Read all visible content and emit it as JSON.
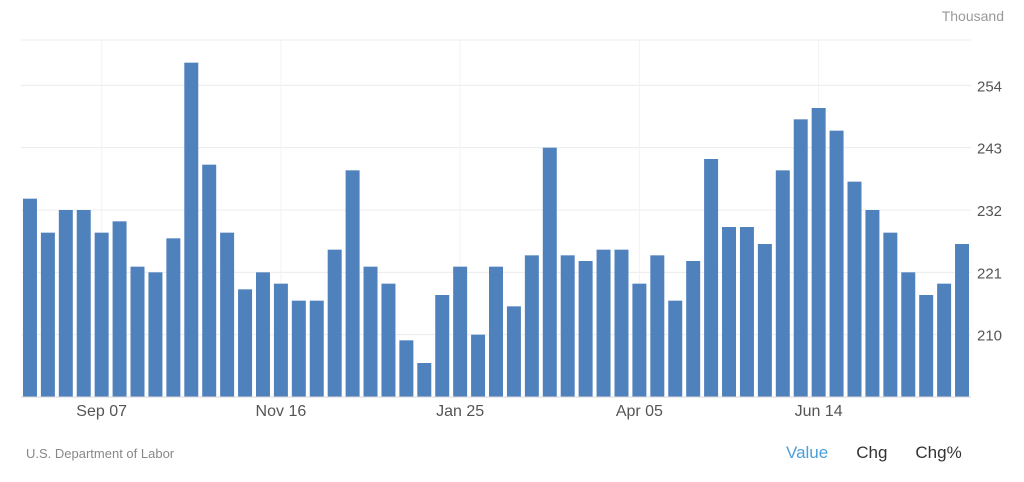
{
  "unit_label": "Thousand",
  "source": "U.S. Department of Labor",
  "tabs": [
    {
      "label": "Value",
      "active": true
    },
    {
      "label": "Chg",
      "active": false
    },
    {
      "label": "Chg%",
      "active": false
    }
  ],
  "colors": {
    "bar": "#4f81bd",
    "grid": "#ececec",
    "tick_text": "#555555",
    "active_tab": "#4a9fdb"
  },
  "chart_data": {
    "type": "bar",
    "ylim": [
      199,
      262
    ],
    "yticks": [
      210,
      221,
      232,
      243,
      254
    ],
    "xtick_labels": [
      {
        "index": 4,
        "label": "Sep 07"
      },
      {
        "index": 14,
        "label": "Nov 16"
      },
      {
        "index": 24,
        "label": "Jan 25"
      },
      {
        "index": 34,
        "label": "Apr 05"
      },
      {
        "index": 44,
        "label": "Jun 14"
      }
    ],
    "values": [
      234,
      228,
      232,
      232,
      228,
      230,
      222,
      221,
      227,
      258,
      240,
      228,
      218,
      221,
      219,
      216,
      216,
      225,
      239,
      222,
      219,
      209,
      205,
      217,
      222,
      210,
      222,
      215,
      224,
      243,
      224,
      223,
      225,
      225,
      219,
      224,
      216,
      223,
      241,
      229,
      229,
      226,
      239,
      248,
      250,
      246,
      237,
      232,
      228,
      221,
      217,
      219,
      226
    ],
    "grid": true
  }
}
